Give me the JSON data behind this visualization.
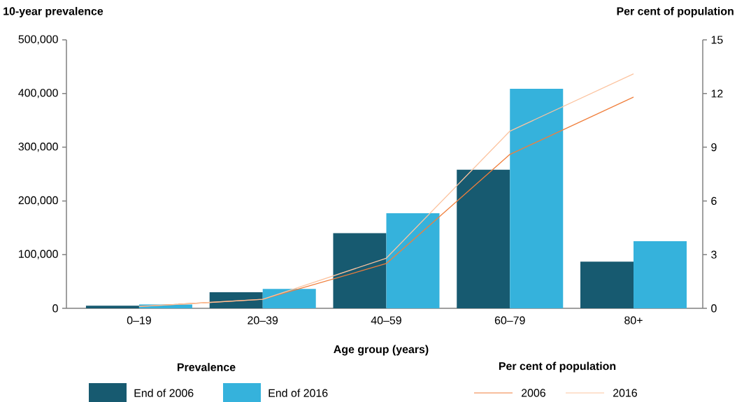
{
  "chart_data": {
    "type": "bar",
    "ylabel": "10-year prevalence",
    "y2label": "Per cent of population",
    "xlabel": "Age group (years)",
    "legend_title": "Prevalence",
    "annotations": [
      "Per cent of population"
    ],
    "categories": [
      "0–19",
      "20–39",
      "40–59",
      "60–79",
      "80+"
    ],
    "series": [
      {
        "name": "End of 2006",
        "color": "#175a70",
        "values": [
          5000,
          30000,
          140000,
          258000,
          87000
        ]
      },
      {
        "name": "End of 2016",
        "color": "#35b2dc",
        "values": [
          7000,
          36000,
          177000,
          409000,
          125000
        ]
      },
      {
        "name": "2006",
        "type": "line",
        "axis": "y2",
        "color": "#f07f3c",
        "values": [
          0.1,
          0.5,
          2.5,
          8.6,
          11.8
        ]
      },
      {
        "name": "2016",
        "type": "line",
        "axis": "y2",
        "color": "#fcc4a0",
        "values": [
          0.1,
          0.5,
          2.8,
          9.9,
          13.1
        ]
      }
    ],
    "ylim": [
      0,
      500000
    ],
    "yticks": [
      0,
      {
        "value": 100000,
        "label": "100,000"
      },
      {
        "value": 200000,
        "label": "200,000"
      },
      {
        "value": 300000,
        "label": "300,000"
      },
      {
        "value": 400000,
        "label": "400,000"
      },
      {
        "value": 500000,
        "label": "500,000"
      }
    ],
    "y2lim": [
      0,
      15
    ],
    "y2ticks": [
      0,
      3,
      6,
      9,
      12,
      15
    ],
    "grid": false,
    "legend": "bottom"
  }
}
